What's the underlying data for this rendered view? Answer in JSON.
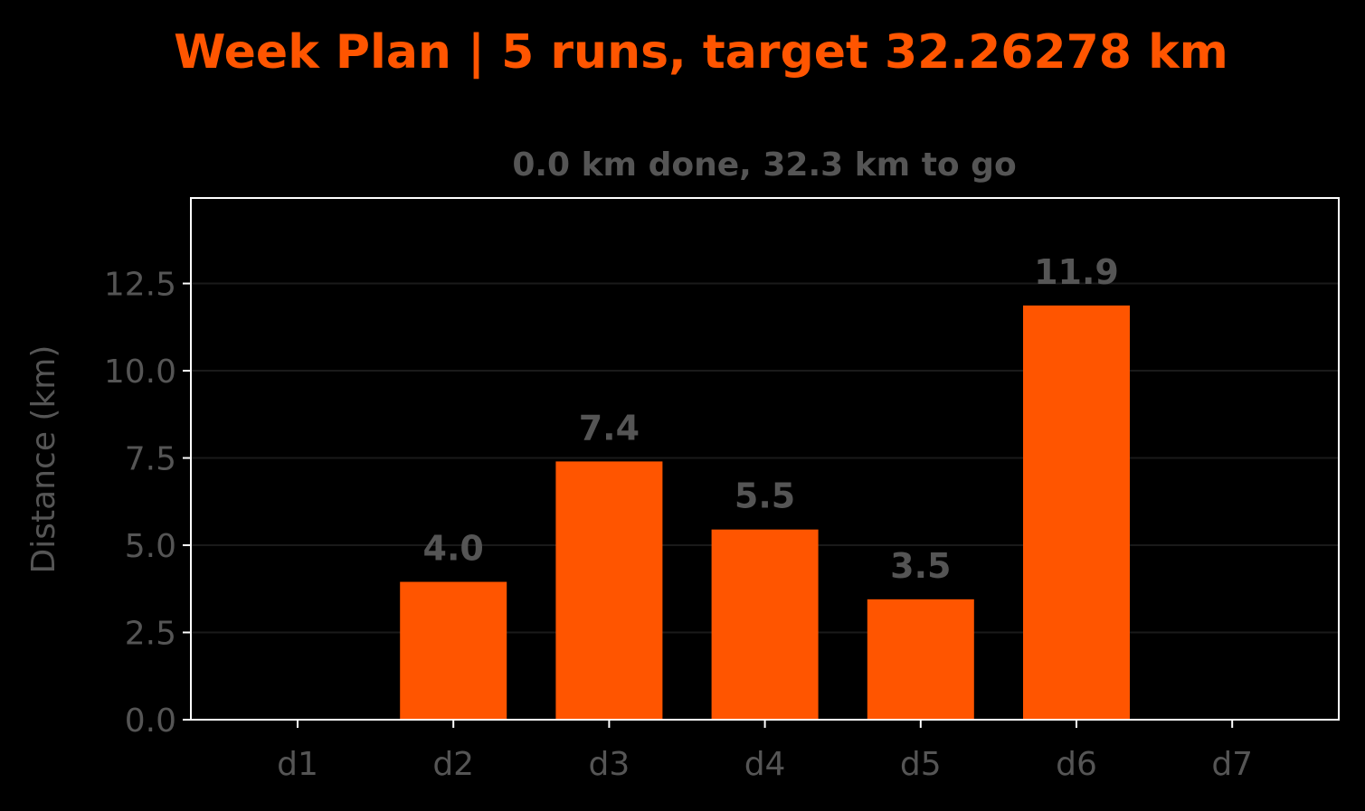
{
  "chart_data": {
    "type": "bar",
    "title": "Week Plan | 5 runs, target 32.26278 km",
    "subtitle": "0.0 km done, 32.3 km to go",
    "xlabel": "",
    "ylabel": "Distance (km)",
    "categories": [
      "d1",
      "d2",
      "d3",
      "d4",
      "d5",
      "d6",
      "d7"
    ],
    "values": [
      0,
      3.95,
      7.4,
      5.45,
      3.45,
      11.87,
      0
    ],
    "data_labels": [
      "",
      "4.0",
      "7.4",
      "5.5",
      "3.5",
      "11.9",
      ""
    ],
    "ylim": [
      0,
      14.95
    ],
    "yticks": [
      "0.0",
      "2.5",
      "5.0",
      "7.5",
      "10.0",
      "12.5"
    ],
    "grid": true,
    "colors": {
      "bar": "#ff5500",
      "background": "#000000",
      "text": "#555555",
      "axes": "#ffffff",
      "title": "#ff5500",
      "grid": "#1a1a1a"
    }
  }
}
